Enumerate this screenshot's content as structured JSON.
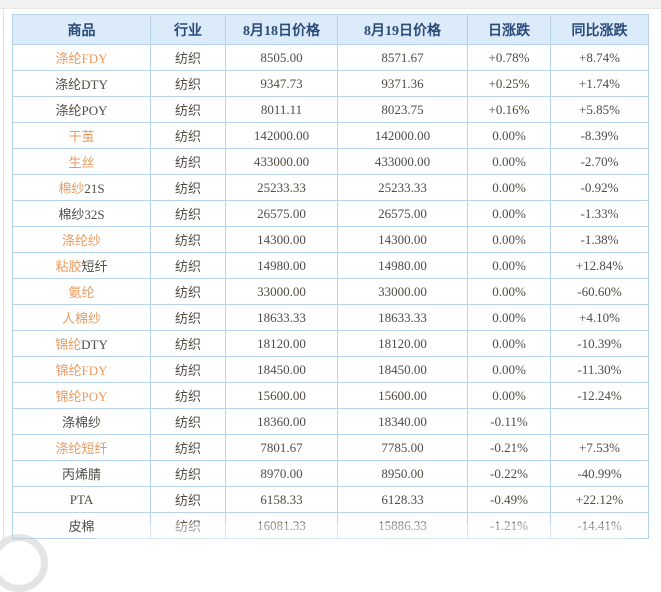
{
  "colors": {
    "header_bg": "#dcebfa",
    "header_text": "#2a4a78",
    "border": "#b7d3eb",
    "link_orange": "#e99a5f",
    "text_dark": "#504b44",
    "change_up_red": "#e60000",
    "change_down_green": "#21a121"
  },
  "table": {
    "headers": [
      "商品",
      "行业",
      "8月18日价格",
      "8月19日价格",
      "日涨跌",
      "同比涨跌"
    ],
    "rows": [
      {
        "name": [
          {
            "t": "涤纶FDY",
            "c": "orange"
          }
        ],
        "industry": "纺织",
        "price_0818": "8505.00",
        "price_0819": "8571.67",
        "daily": {
          "t": "+0.78%",
          "c": "red"
        },
        "yoy": {
          "t": "+8.74%",
          "c": "red"
        }
      },
      {
        "name": [
          {
            "t": "涤纶DTY",
            "c": "dark"
          }
        ],
        "industry": "纺织",
        "price_0818": "9347.73",
        "price_0819": "9371.36",
        "daily": {
          "t": "+0.25%",
          "c": "red"
        },
        "yoy": {
          "t": "+1.74%",
          "c": "red"
        }
      },
      {
        "name": [
          {
            "t": "涤纶POY",
            "c": "dark"
          }
        ],
        "industry": "纺织",
        "price_0818": "8011.11",
        "price_0819": "8023.75",
        "daily": {
          "t": "+0.16%",
          "c": "red"
        },
        "yoy": {
          "t": "+5.85%",
          "c": "red"
        }
      },
      {
        "name": [
          {
            "t": "干茧",
            "c": "orange"
          }
        ],
        "industry": "纺织",
        "price_0818": "142000.00",
        "price_0819": "142000.00",
        "daily": {
          "t": "0.00%",
          "c": "dark"
        },
        "yoy": {
          "t": "-8.39%",
          "c": "green"
        }
      },
      {
        "name": [
          {
            "t": "生丝",
            "c": "orange"
          }
        ],
        "industry": "纺织",
        "price_0818": "433000.00",
        "price_0819": "433000.00",
        "daily": {
          "t": "0.00%",
          "c": "dark"
        },
        "yoy": {
          "t": "-2.70%",
          "c": "green"
        }
      },
      {
        "name": [
          {
            "t": "棉纱",
            "c": "orange"
          },
          {
            "t": "21S",
            "c": "dark"
          }
        ],
        "industry": "纺织",
        "price_0818": "25233.33",
        "price_0819": "25233.33",
        "daily": {
          "t": "0.00%",
          "c": "dark"
        },
        "yoy": {
          "t": "-0.92%",
          "c": "green"
        }
      },
      {
        "name": [
          {
            "t": "棉纱32S",
            "c": "dark"
          }
        ],
        "industry": "纺织",
        "price_0818": "26575.00",
        "price_0819": "26575.00",
        "daily": {
          "t": "0.00%",
          "c": "dark"
        },
        "yoy": {
          "t": "-1.33%",
          "c": "green"
        }
      },
      {
        "name": [
          {
            "t": "涤纶纱",
            "c": "orange"
          }
        ],
        "industry": "纺织",
        "price_0818": "14300.00",
        "price_0819": "14300.00",
        "daily": {
          "t": "0.00%",
          "c": "dark"
        },
        "yoy": {
          "t": "-1.38%",
          "c": "green"
        }
      },
      {
        "name": [
          {
            "t": "粘胶",
            "c": "orange"
          },
          {
            "t": "短纤",
            "c": "dark"
          }
        ],
        "industry": "纺织",
        "price_0818": "14980.00",
        "price_0819": "14980.00",
        "daily": {
          "t": "0.00%",
          "c": "dark"
        },
        "yoy": {
          "t": "+12.84%",
          "c": "red"
        }
      },
      {
        "name": [
          {
            "t": "氨纶",
            "c": "orange"
          }
        ],
        "industry": "纺织",
        "price_0818": "33000.00",
        "price_0819": "33000.00",
        "daily": {
          "t": "0.00%",
          "c": "dark"
        },
        "yoy": {
          "t": "-60.60%",
          "c": "green"
        }
      },
      {
        "name": [
          {
            "t": "人棉纱",
            "c": "orange"
          }
        ],
        "industry": "纺织",
        "price_0818": "18633.33",
        "price_0819": "18633.33",
        "daily": {
          "t": "0.00%",
          "c": "dark"
        },
        "yoy": {
          "t": "+4.10%",
          "c": "red"
        }
      },
      {
        "name": [
          {
            "t": "锦纶",
            "c": "orange"
          },
          {
            "t": "DTY",
            "c": "dark"
          }
        ],
        "industry": "纺织",
        "price_0818": "18120.00",
        "price_0819": "18120.00",
        "daily": {
          "t": "0.00%",
          "c": "dark"
        },
        "yoy": {
          "t": "-10.39%",
          "c": "green"
        }
      },
      {
        "name": [
          {
            "t": "锦纶FDY",
            "c": "orange"
          }
        ],
        "industry": "纺织",
        "price_0818": "18450.00",
        "price_0819": "18450.00",
        "daily": {
          "t": "0.00%",
          "c": "dark"
        },
        "yoy": {
          "t": "-11.30%",
          "c": "green"
        }
      },
      {
        "name": [
          {
            "t": "锦纶POY",
            "c": "orange"
          }
        ],
        "industry": "纺织",
        "price_0818": "15600.00",
        "price_0819": "15600.00",
        "daily": {
          "t": "0.00%",
          "c": "dark"
        },
        "yoy": {
          "t": "-12.24%",
          "c": "green"
        }
      },
      {
        "name": [
          {
            "t": "涤棉纱",
            "c": "dark"
          }
        ],
        "industry": "纺织",
        "price_0818": "18360.00",
        "price_0819": "18340.00",
        "daily": {
          "t": "-0.11%",
          "c": "green"
        },
        "yoy": null
      },
      {
        "name": [
          {
            "t": "涤纶短纤",
            "c": "orange"
          }
        ],
        "industry": "纺织",
        "price_0818": "7801.67",
        "price_0819": "7785.00",
        "daily": {
          "t": "-0.21%",
          "c": "green"
        },
        "yoy": {
          "t": "+7.53%",
          "c": "red"
        }
      },
      {
        "name": [
          {
            "t": "丙烯腈",
            "c": "dark"
          }
        ],
        "industry": "纺织",
        "price_0818": "8970.00",
        "price_0819": "8950.00",
        "daily": {
          "t": "-0.22%",
          "c": "green"
        },
        "yoy": {
          "t": "-40.99%",
          "c": "green"
        }
      },
      {
        "name": [
          {
            "t": "PTA",
            "c": "dark"
          }
        ],
        "industry": "纺织",
        "price_0818": "6158.33",
        "price_0819": "6128.33",
        "daily": {
          "t": "-0.49%",
          "c": "green"
        },
        "yoy": {
          "t": "+22.12%",
          "c": "red"
        }
      },
      {
        "name": [
          {
            "t": "皮棉",
            "c": "dark"
          }
        ],
        "industry": "纺织",
        "price_0818": "16081.33",
        "price_0819": "15886.33",
        "daily": {
          "t": "-1.21%",
          "c": "green"
        },
        "yoy": {
          "t": "-14.41%",
          "c": "green"
        }
      }
    ]
  }
}
